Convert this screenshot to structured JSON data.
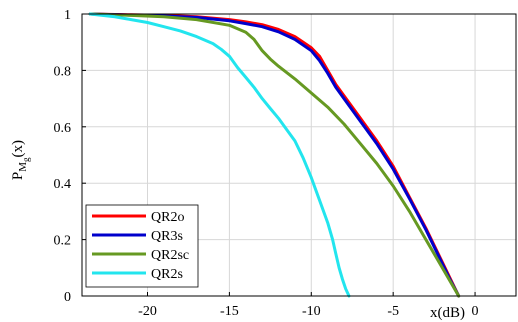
{
  "chart_data": {
    "type": "line",
    "xlabel": "x(dB)",
    "ylabel": "P",
    "ylabel_sub": "M",
    "ylabel_subsub": "g",
    "ylabel_arg": "(x)",
    "xlim": [
      -24,
      2.5
    ],
    "ylim": [
      0,
      1
    ],
    "x_ticks": [
      -20,
      -15,
      -10,
      -5,
      0
    ],
    "y_ticks": [
      0,
      0.2,
      0.4,
      0.6,
      0.8,
      1
    ],
    "x_tick_labels": [
      "-20",
      "-15",
      "-10",
      "-5",
      "0"
    ],
    "y_tick_labels": [
      "0",
      "0.2",
      "0.4",
      "0.6",
      "0.8",
      "1"
    ],
    "grid": true,
    "legend_position": "bottom-left",
    "series": [
      {
        "name": "QR2o",
        "color": "#ff0000",
        "x": [
          -23.5,
          -21,
          -19,
          -17,
          -15,
          -14,
          -13,
          -12,
          -11,
          -10,
          -9.5,
          -9,
          -8.5,
          -8,
          -7,
          -6,
          -5,
          -4,
          -3,
          -2,
          -1.5,
          -1
        ],
        "y": [
          1,
          0.997,
          0.995,
          0.99,
          0.98,
          0.972,
          0.962,
          0.945,
          0.92,
          0.88,
          0.85,
          0.8,
          0.75,
          0.71,
          0.63,
          0.55,
          0.46,
          0.35,
          0.24,
          0.12,
          0.06,
          0
        ]
      },
      {
        "name": "QR3s",
        "color": "#0000cc",
        "x": [
          -23.5,
          -21,
          -19,
          -17,
          -15,
          -14,
          -13,
          -12,
          -11,
          -10,
          -9.5,
          -9,
          -8.5,
          -8,
          -7,
          -6,
          -5,
          -4,
          -3,
          -2,
          -1.5,
          -1
        ],
        "y": [
          1,
          0.996,
          0.993,
          0.988,
          0.976,
          0.966,
          0.955,
          0.937,
          0.91,
          0.87,
          0.835,
          0.79,
          0.74,
          0.7,
          0.62,
          0.54,
          0.45,
          0.345,
          0.235,
          0.115,
          0.055,
          0
        ]
      },
      {
        "name": "QR2sc",
        "color": "#669922",
        "x": [
          -23.5,
          -21,
          -19,
          -17,
          -15,
          -14,
          -13.5,
          -13,
          -12.5,
          -12,
          -11,
          -10,
          -9,
          -8,
          -7,
          -6,
          -5,
          -4,
          -3,
          -2,
          -1
        ],
        "y": [
          1,
          0.995,
          0.99,
          0.98,
          0.96,
          0.935,
          0.91,
          0.87,
          0.84,
          0.815,
          0.77,
          0.72,
          0.67,
          0.61,
          0.54,
          0.47,
          0.39,
          0.3,
          0.2,
          0.1,
          0
        ]
      },
      {
        "name": "QR2s",
        "color": "#22e5ee",
        "x": [
          -23.5,
          -22,
          -21,
          -20,
          -19,
          -18,
          -17,
          -16,
          -15.5,
          -15,
          -14.5,
          -14,
          -13.5,
          -13,
          -12.5,
          -12,
          -11.5,
          -11,
          -10.5,
          -10,
          -9.5,
          -9,
          -8.7,
          -8.5,
          -8.3,
          -8.1,
          -7.9,
          -7.7
        ],
        "y": [
          1,
          0.99,
          0.98,
          0.97,
          0.955,
          0.94,
          0.92,
          0.895,
          0.875,
          0.85,
          0.81,
          0.775,
          0.74,
          0.7,
          0.665,
          0.63,
          0.59,
          0.55,
          0.49,
          0.42,
          0.34,
          0.26,
          0.2,
          0.15,
          0.1,
          0.06,
          0.025,
          0
        ]
      }
    ]
  }
}
